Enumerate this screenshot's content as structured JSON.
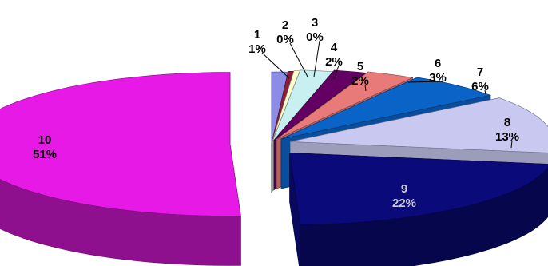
{
  "chart_data": {
    "type": "pie",
    "style": "3d-exploded",
    "title": "",
    "legend": "none",
    "categories": [
      "1",
      "2",
      "3",
      "4",
      "5",
      "6",
      "7",
      "8",
      "9",
      "10"
    ],
    "values": [
      1,
      0,
      0,
      2,
      2,
      3,
      6,
      13,
      22,
      51
    ],
    "value_labels": [
      "1%",
      "0%",
      "0%",
      "2%",
      "2%",
      "3%",
      "6%",
      "13%",
      "22%",
      "51%"
    ],
    "colors": [
      "#8c8ce6",
      "#8a1f3a",
      "#ffffcc",
      "#c8f0f0",
      "#640064",
      "#e87a7a",
      "#0a64c8",
      "#c8c8f0",
      "#0a0a7a",
      "#e619e6"
    ]
  }
}
